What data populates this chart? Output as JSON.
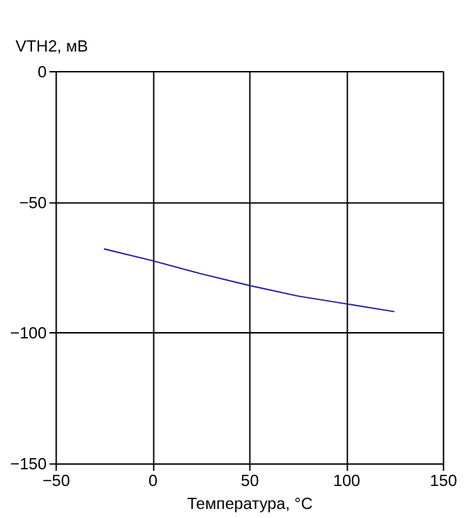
{
  "chart_data": {
    "type": "line",
    "xlabel": "Температура, °C",
    "ylabel": "VTH2, мВ",
    "x": [
      -25,
      0,
      25,
      50,
      75,
      100,
      125
    ],
    "series": [
      {
        "color": "#1f1fa0",
        "values": [
          -68,
          -72.5,
          -77.5,
          -82,
          -86,
          -89,
          -92
        ]
      }
    ],
    "xlim": [
      -50,
      150
    ],
    "xticks": [
      -50,
      0,
      50,
      100,
      150
    ],
    "ylim": [
      -150,
      0
    ],
    "yticks": [
      -150,
      -100,
      -50,
      0
    ],
    "grid": true,
    "marker": "none",
    "line_style": "solid"
  }
}
